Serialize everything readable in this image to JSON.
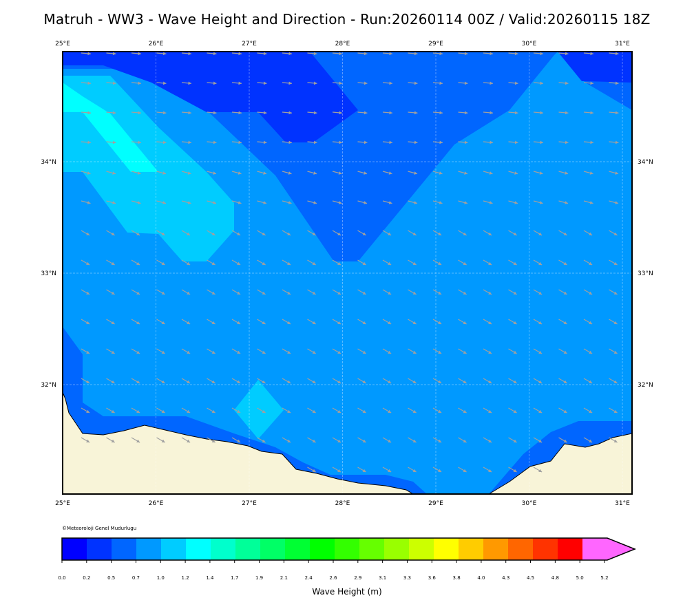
{
  "title": "Matruh - WW3 - Wave Height and Direction - Run:20260114 00Z / Valid:20260115 18Z",
  "credit": "©Meteoroloji Genel Mudurlugu",
  "map": {
    "lon_range": [
      25.0,
      31.1
    ],
    "lat_range": [
      31.0,
      35.0
    ],
    "lon_ticks": [
      "25°E",
      "26°E",
      "27°E",
      "28°E",
      "29°E",
      "30°E",
      "31°E"
    ],
    "lat_ticks": [
      "34°N",
      "33°N",
      "32°N"
    ],
    "land_color": "#f8f4d8",
    "grid": true,
    "arrow_color": "#a0a0a0"
  },
  "colorbar": {
    "label": "Wave Height (m)",
    "ticks": [
      "0.0",
      "0.2",
      "0.5",
      "0.7",
      "1.0",
      "1.2",
      "1.4",
      "1.7",
      "1.9",
      "2.1",
      "2.4",
      "2.6",
      "2.9",
      "3.1",
      "3.3",
      "3.6",
      "3.8",
      "4.0",
      "4.3",
      "4.5",
      "4.8",
      "5.0",
      "5.2"
    ],
    "colors": [
      "#0000ff",
      "#0033ff",
      "#0066ff",
      "#0099ff",
      "#00ccff",
      "#00ffff",
      "#00ffcc",
      "#00ff99",
      "#00ff66",
      "#00ff33",
      "#00ff00",
      "#33ff00",
      "#66ff00",
      "#99ff00",
      "#ccff00",
      "#ffff00",
      "#ffcc00",
      "#ff9900",
      "#ff6600",
      "#ff3300",
      "#ff0000",
      "#ff66ff"
    ]
  }
}
